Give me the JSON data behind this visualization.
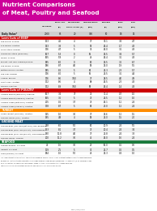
{
  "title_line1": "Nutrient Comparisons",
  "title_line2": "of Meat, Poultry and Seafood",
  "title_bg": "#cc0099",
  "col_headers_line1": [
    "",
    "TOTAL FAT",
    "SATURATED-",
    "CHOLESTEROL,",
    "PROTEIN",
    "IRON",
    "ZINC"
  ],
  "col_headers_line2": [
    "CALORIES",
    "(g)",
    "FATTY ACIDS (g)",
    "(mg)",
    "(g)",
    "(mg)",
    "(mg)"
  ],
  "daily_value_row": [
    "Daily Value*",
    "2000",
    "65",
    "20",
    "300",
    "50",
    "18",
    "15"
  ],
  "sections": [
    {
      "name": "Lean Cuts of BEEF",
      "color": "#cc0000",
      "rows": [
        [
          "Top Round, broiled",
          "153",
          "4.2",
          "4",
          "77",
          "30.1",
          "3.4",
          "4.7"
        ],
        [
          "Eye Round, roasted",
          "143",
          "3.9",
          "5",
          "59",
          "26.4",
          "1.7",
          "4.3"
        ],
        [
          "Flank Steak, broiled",
          "176",
          "4.7",
          "5",
          "34",
          "26.0",
          "3.1",
          "4.3"
        ],
        [
          "Tenderloin Steak (boneless),",
          "167",
          "5.3",
          "0",
          "65",
          "25.5",
          "3.4",
          "5.7"
        ],
        [
          "Sirloin, broiled",
          "165",
          "5.8",
          "2",
          "76",
          "26.4",
          "3.1",
          "4.3"
        ],
        [
          "Brisket, Flat Half, braised/cooked",
          "185",
          "6.0",
          "0",
          "80",
          "29.5",
          "3.2",
          "6.7"
        ],
        [
          "Top Sirloin, broiled",
          "186",
          "8.7",
          "4.0",
          "89",
          "25.0",
          "1.9",
          "5.5"
        ],
        [
          "Bottom Round, roasted",
          "185",
          "8.2",
          "5",
          "96",
          "24.3",
          "2.3",
          "5.7"
        ],
        [
          "Top Loin, broiled",
          "176",
          "8.0",
          "5",
          "65",
          "24.5",
          "3.1",
          "4.4"
        ],
        [
          "T-Bone, broiled",
          "176",
          "8.6",
          "3.50",
          "77",
          "28.5",
          "4.0",
          "4.9"
        ],
        [
          "Short Loin, roasted",
          "172",
          "8.6",
          "4",
          "88",
          "26.5",
          "2.3",
          "4.3"
        ],
        [
          "Rib Eye, roasted",
          "172",
          "8.9",
          "3.50",
          "69",
          "26.4",
          "1.4",
          "4.3"
        ]
      ]
    },
    {
      "name": "Lean Cuts of POULTRY",
      "color": "#cc0000",
      "rows": [
        [
          "Chicken Breast (with skin), roasted",
          "167",
          "3.4",
          "77",
          "71",
          "31.4",
          "0.7",
          "1.0"
        ],
        [
          "Chicken Breast (skinless), roasted",
          "165",
          "3.6",
          "5",
          "73",
          "24.5",
          "1.1",
          "1.0"
        ],
        [
          "Chicken Thigh (with skin), roasted",
          "205",
          "0.1",
          "3.7",
          "79",
          "26.1",
          "1.1",
          "2.4"
        ],
        [
          "Chicken Thigh (skinless), roasted",
          "178",
          "8.7",
          "5",
          "81",
          "23.0",
          "1.2",
          "2.4"
        ]
      ]
    },
    {
      "name": "TURKEY",
      "color": "#ff8c00",
      "rows": [
        [
          "Turkey Breast (skinless), roasted",
          "135",
          "1.0",
          "3.0",
          "77",
          "25.6",
          "1.2",
          "1.5"
        ],
        [
          "Ground Turkey (any), roasted",
          "195",
          "4.8",
          "4",
          "89",
          "24.0",
          "1.5",
          "2.0"
        ]
      ]
    },
    {
      "name": "GROUND MEAT",
      "color": "#1a5276",
      "rows": [
        [
          "Ground Beef (lean 85%/fat 15%), pan-browned",
          "218",
          "6.0",
          "5.0",
          "80",
          "20.9",
          "2.4",
          "5.5"
        ],
        [
          "Ground Beef (93% lean/7% fat), pan-browned",
          "153",
          "8.1",
          "3.7",
          "73",
          "20.4",
          "2.4",
          "3.4"
        ],
        [
          "Ground Beef (97% lean/3% fat), pan-browned",
          "190",
          "11.8",
          "4.0",
          "77",
          "21.8",
          "2.4",
          "3.3"
        ],
        [
          "Ground Turkey, cooked",
          "200",
          "11.2",
          "3.0",
          "45",
          "26.0",
          "1.6",
          "2.4"
        ]
      ]
    },
    {
      "name": "SEAFOOD",
      "color": "#1a7a3c",
      "rows": [
        [
          "Orange Roughy, dry heat",
          "76",
          "1.6",
          "3.0",
          "23",
          "16.0",
          "0.1",
          "0.6"
        ],
        [
          "Halibut, dry heat",
          "119",
          "2.5",
          "5",
          "35",
          "22.7",
          "0.2",
          "0.5"
        ],
        [
          "Tuna (bluefin), dry heat",
          "184",
          "1.0",
          "5.0",
          "49",
          "25.3",
          "0.4",
          "1.0"
        ]
      ]
    }
  ],
  "footer1": "U.S. Department of Agriculture, Agricultural Research Service, 2002. USDA Nutrient Database for Standard Reference,",
  "footer2": "Release 15. Nutrient Data Laboratory homepage www.nal.usda.gov/fnic/foodcomp. All beef cuts (3 oz. separable lean",
  "footer3": "only, except for Tip Tenderloin and Tender Steak, 3\" trim. All products 3 oz. cooked servings.",
  "footer4": "*Based on 2,000 calorie intake for adults and children 4 or more years of age.",
  "bottom_text": "USDA/AMS/2003"
}
